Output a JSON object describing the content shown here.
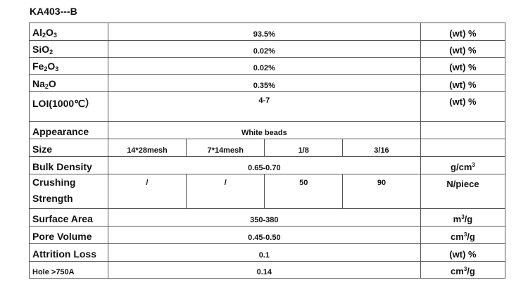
{
  "title": "KA403---B",
  "rows": {
    "al2o3": {
      "label_main": "Al",
      "sub1": "2",
      "mid": "O",
      "sub2": "3",
      "value": "93.5%",
      "unit": "(wt) %"
    },
    "sio2": {
      "label_main": "SiO",
      "sub1": "2",
      "value": "0.02%",
      "unit": "(wt) %"
    },
    "fe2o3": {
      "label_main": "Fe",
      "sub1": "2",
      "mid": "O",
      "sub2": "3",
      "value": "0.02%",
      "unit": "(wt) %"
    },
    "na2o": {
      "label_main": "Na",
      "sub1": "2",
      "mid": "O",
      "value": "0.35%",
      "unit": "(wt) %"
    },
    "loi": {
      "label": "LOI(1000℃）",
      "value": "4-7",
      "unit": "(wt) %"
    },
    "appearance": {
      "label": "Appearance",
      "value": "White beads"
    },
    "size": {
      "label": "Size",
      "values": [
        "14*28mesh",
        "7*14mesh",
        "1/8",
        "3/16"
      ]
    },
    "bulk_density": {
      "label": "Bulk Density",
      "value": "0.65-0.70",
      "unit_main": "g/cm",
      "unit_sup": "3"
    },
    "crushing": {
      "label_line1": "Crushing",
      "label_line2": "Strength",
      "values": [
        "/",
        "/",
        "50",
        "90"
      ],
      "unit": "N/piece"
    },
    "surface_area": {
      "label": "Surface Area",
      "value": "350-380",
      "unit_main": "m",
      "unit_sup": "3",
      "unit_tail": "/g"
    },
    "pore_volume": {
      "label": "Pore Volume",
      "value": "0.45-0.50",
      "unit_main": "cm",
      "unit_sup": "3",
      "unit_tail": "/g"
    },
    "attrition": {
      "label": "Attrition Loss",
      "value": "0.1",
      "unit": "(wt) %"
    },
    "hole": {
      "label": "Hole >750A",
      "value": "0.14",
      "unit_main": "cm",
      "unit_sup": "3",
      "unit_tail": "/g"
    }
  }
}
